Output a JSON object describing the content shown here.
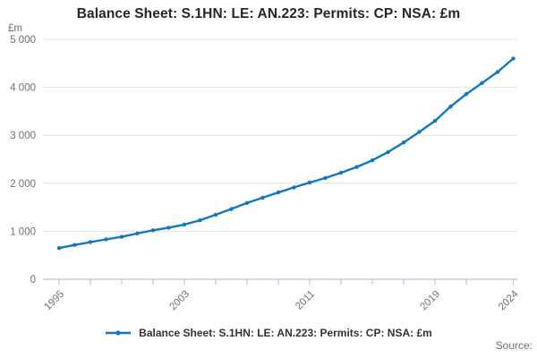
{
  "title": "Balance Sheet: S.1HN: LE: AN.223: Permits: CP: NSA: £m",
  "y_axis_unit": "£m",
  "source_label": "Source:",
  "legend": {
    "label": "Balance Sheet: S.1HN: LE: AN.223: Permits: CP: NSA: £m"
  },
  "colors": {
    "line": "#1178be",
    "marker": "#1178be",
    "grid": "#e2e2e2",
    "axis": "#b9c8da",
    "tick_text": "#6f6f6f",
    "title_text": "#262626",
    "legend_text": "#333333"
  },
  "chart_data": {
    "type": "line",
    "title": "Balance Sheet: S.1HN: LE: AN.223: Permits: CP: NSA: £m",
    "xlabel": "",
    "ylabel": "£m",
    "ylim": [
      0,
      5000
    ],
    "grid": true,
    "legend_position": "bottom",
    "marker_style": "point",
    "y_ticks": [
      0,
      1000,
      2000,
      3000,
      4000,
      5000
    ],
    "y_tick_labels": [
      "0",
      "1 000",
      "2 000",
      "3 000",
      "4 000",
      "5 000"
    ],
    "x_minor_ticks": [
      1995,
      1997,
      1999,
      2001,
      2003,
      2005,
      2007,
      2009,
      2011,
      2013,
      2015,
      2017,
      2019,
      2021,
      2024
    ],
    "x_labeled_ticks": [
      1995,
      2003,
      2011,
      2019,
      2024
    ],
    "series": [
      {
        "name": "Balance Sheet: S.1HN: LE: AN.223: Permits: CP: NSA: £m",
        "x": [
          1995,
          1996,
          1997,
          1998,
          1999,
          2000,
          2001,
          2002,
          2003,
          2004,
          2005,
          2006,
          2007,
          2008,
          2009,
          2010,
          2011,
          2012,
          2013,
          2014,
          2015,
          2016,
          2017,
          2018,
          2019,
          2020,
          2021,
          2022,
          2023,
          2024
        ],
        "values": [
          650,
          715,
          775,
          830,
          885,
          955,
          1020,
          1075,
          1140,
          1230,
          1345,
          1465,
          1590,
          1700,
          1810,
          1915,
          2015,
          2110,
          2220,
          2340,
          2480,
          2650,
          2850,
          3070,
          3300,
          3600,
          3860,
          4090,
          4320,
          4600
        ]
      }
    ]
  }
}
